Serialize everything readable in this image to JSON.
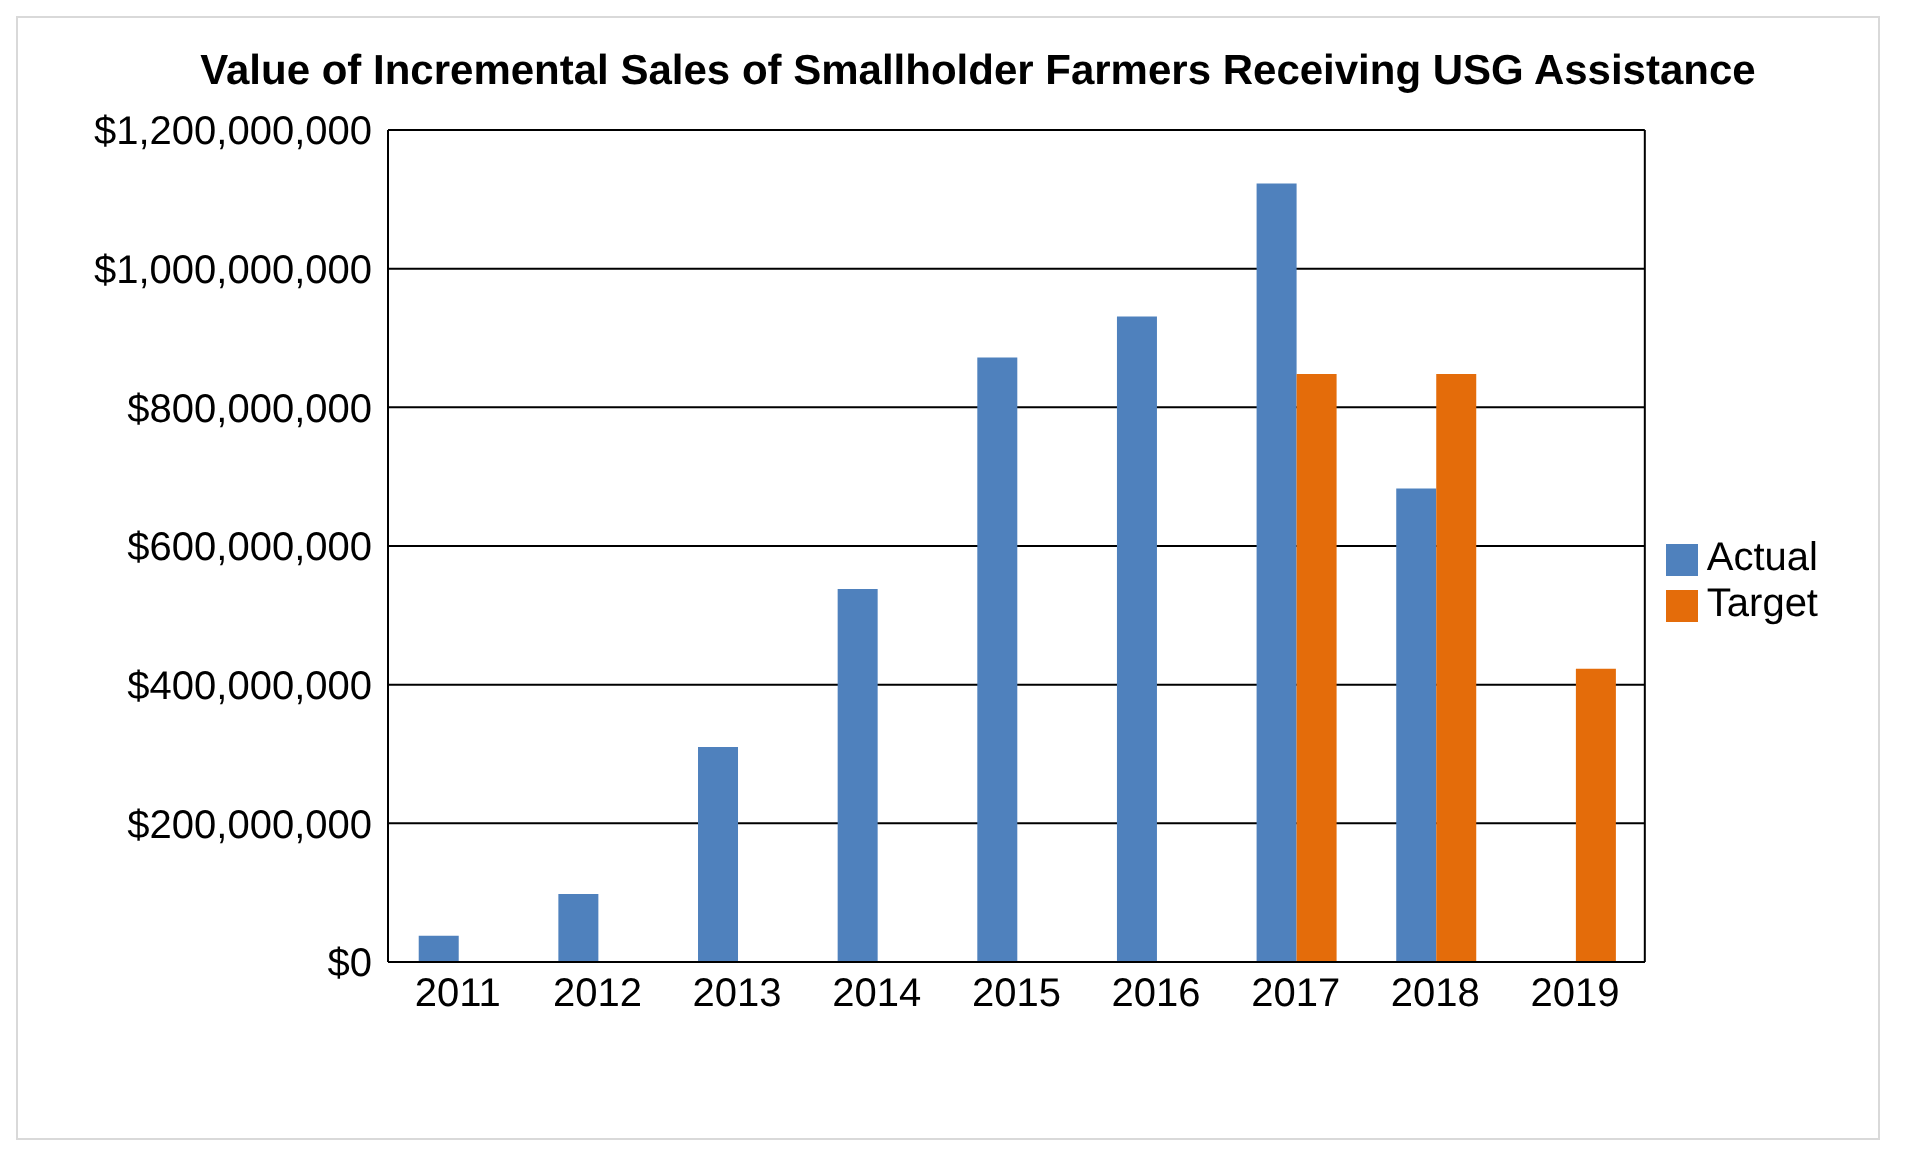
{
  "chart_data": {
    "type": "bar",
    "title": "Value of Incremental Sales of Smallholder Farmers Receiving USG Assistance",
    "categories": [
      "2011",
      "2012",
      "2013",
      "2014",
      "2015",
      "2016",
      "2017",
      "2018",
      "2019"
    ],
    "series": [
      {
        "name": "Actual",
        "color": "#4f81bd",
        "values": [
          38000000,
          98000000,
          310000000,
          538000000,
          872000000,
          931000000,
          1123000000,
          683000000,
          null
        ]
      },
      {
        "name": "Target",
        "color": "#e46c0a",
        "values": [
          null,
          null,
          null,
          null,
          null,
          null,
          848000000,
          848000000,
          423000000
        ]
      }
    ],
    "ylim": [
      0,
      1200000000
    ],
    "yticks": [
      {
        "value": 0,
        "label": "$0"
      },
      {
        "value": 200000000,
        "label": "$200,000,000"
      },
      {
        "value": 400000000,
        "label": "$400,000,000"
      },
      {
        "value": 600000000,
        "label": "$600,000,000"
      },
      {
        "value": 800000000,
        "label": "$800,000,000"
      },
      {
        "value": 1000000000,
        "label": "$1,000,000,000"
      },
      {
        "value": 1200000000,
        "label": "$1,200,000,000"
      }
    ],
    "grid": "y",
    "legend": "right"
  }
}
